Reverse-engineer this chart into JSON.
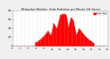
{
  "title": "Milwaukee Weather  Solar Radiation per Minute (24 Hours)",
  "background_color": "#f0f0f0",
  "plot_bg_color": "#ffffff",
  "grid_color": "#cccccc",
  "fill_color": "#ff0000",
  "line_color": "#dd0000",
  "legend_label": "Solar Rad",
  "legend_color": "#ff0000",
  "ylim": [
    0,
    800
  ],
  "ytick_vals": [
    0,
    200,
    400,
    600,
    800
  ],
  "ytick_labels": [
    "0",
    "200",
    "400",
    "600",
    "800"
  ],
  "xlim": [
    0,
    1440
  ],
  "num_points": 1440,
  "peak_minute": 780,
  "peak_value": 720,
  "sunrise_minute": 330,
  "sunset_minute": 1230,
  "title_fontsize": 2.8,
  "tick_fontsize": 2.0,
  "legend_fontsize": 2.2
}
